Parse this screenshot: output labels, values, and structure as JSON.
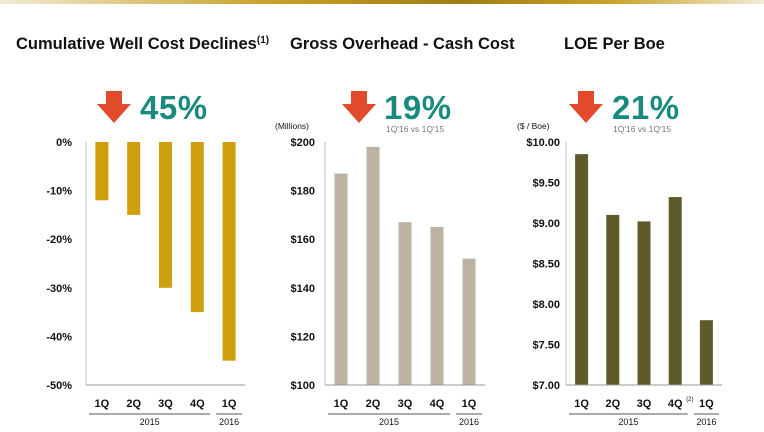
{
  "colors": {
    "accent_teal": "#1a8a7e",
    "arrow_red": "#e24a2c",
    "bar_gold": "#cf9f0e",
    "bar_taupe": "#bdb1a1",
    "bar_olive": "#5e5a2a"
  },
  "panels": [
    {
      "title": "Cumulative Well Cost Declines",
      "title_sup": "(1)",
      "headline_pct": "45%",
      "compare_label": "",
      "arrow_icon": "down-arrow-icon"
    },
    {
      "title": "Gross Overhead - Cash Cost",
      "headline_pct": "19%",
      "compare_label": "1Q'16 vs 1Q'15",
      "arrow_icon": "down-arrow-icon"
    },
    {
      "title": "LOE Per Boe",
      "headline_pct": "21%",
      "compare_label": "1Q'16 vs 1Q'15",
      "arrow_icon": "down-arrow-icon"
    }
  ],
  "chart_data": [
    {
      "type": "bar",
      "title": "Cumulative Well Cost Declines",
      "categories": [
        "1Q",
        "2Q",
        "3Q",
        "4Q",
        "1Q"
      ],
      "groups": [
        {
          "label": "2015",
          "count": 4
        },
        {
          "label": "2016",
          "count": 1
        }
      ],
      "values": [
        -12,
        -15,
        -30,
        -35,
        -45
      ],
      "ylim": [
        -50,
        0
      ],
      "yticks": [
        0,
        -10,
        -20,
        -30,
        -40,
        -50
      ],
      "ytick_labels": [
        "0%",
        "-10%",
        "-20%",
        "-30%",
        "-40%",
        "-50%"
      ],
      "ylabel": "",
      "bar_color": "#cf9f0e"
    },
    {
      "type": "bar",
      "title": "Gross Overhead - Cash Cost",
      "categories": [
        "1Q",
        "2Q",
        "3Q",
        "4Q",
        "1Q"
      ],
      "groups": [
        {
          "label": "2015",
          "count": 4
        },
        {
          "label": "2016",
          "count": 1
        }
      ],
      "values": [
        187,
        198,
        167,
        165,
        152
      ],
      "ylim": [
        100,
        200
      ],
      "yticks": [
        200,
        180,
        160,
        140,
        120,
        100
      ],
      "ytick_labels": [
        "$200",
        "$180",
        "$160",
        "$140",
        "$120",
        "$100"
      ],
      "ylabel": "(Millions)",
      "bar_color": "#bdb1a1"
    },
    {
      "type": "bar",
      "title": "LOE Per Boe",
      "categories": [
        "1Q",
        "2Q",
        "3Q",
        "4Q",
        "1Q"
      ],
      "category_sup": [
        "",
        "",
        "",
        "(2)",
        ""
      ],
      "groups": [
        {
          "label": "2015",
          "count": 4
        },
        {
          "label": "2016",
          "count": 1
        }
      ],
      "values": [
        9.85,
        9.1,
        9.02,
        9.32,
        7.8
      ],
      "ylim": [
        7.0,
        10.0
      ],
      "yticks": [
        10,
        9.5,
        9,
        8.5,
        8,
        7.5,
        7
      ],
      "ytick_labels": [
        "$10.00",
        "$9.50",
        "$9.00",
        "$8.50",
        "$8.00",
        "$7.50",
        "$7.00"
      ],
      "ylabel": "($ / Boe)",
      "bar_color": "#5e5a2a"
    }
  ]
}
